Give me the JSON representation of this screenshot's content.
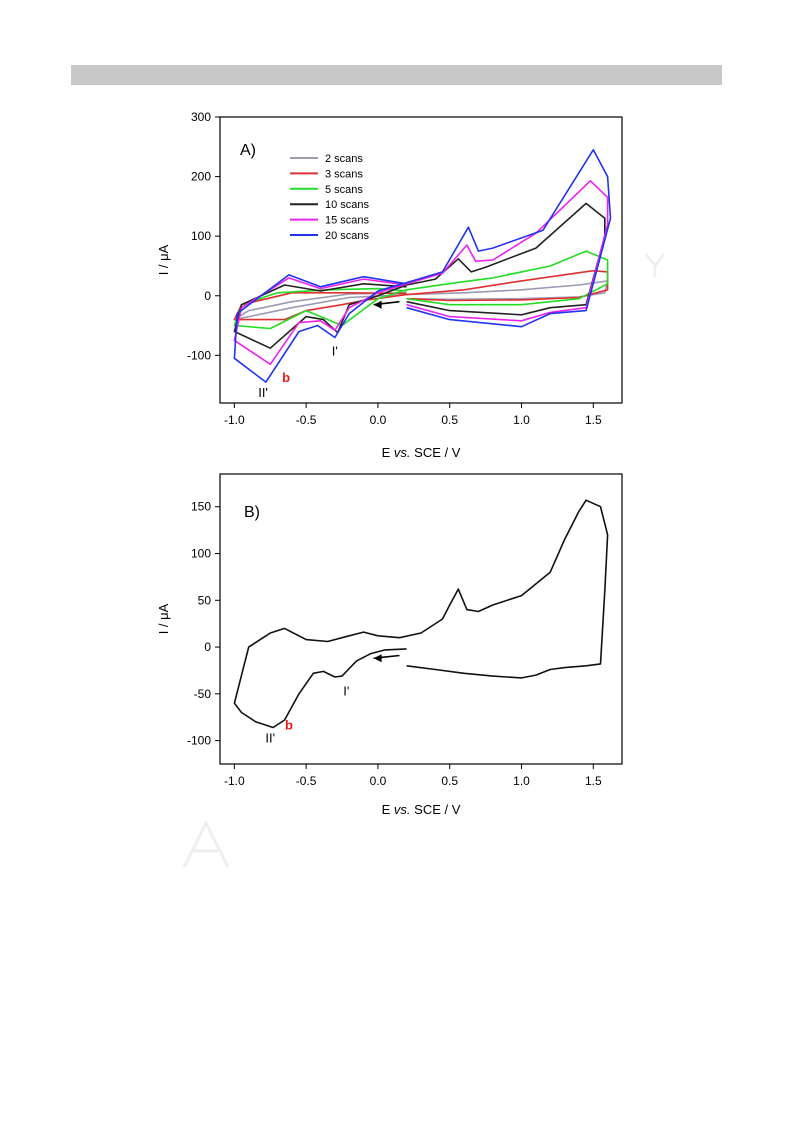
{
  "page": {
    "header_bar_color": "#c8c8c8"
  },
  "chart_data": [
    {
      "type": "line",
      "panel_label": "A)",
      "xlabel_prefix": "E ",
      "xlabel_italic": "vs.",
      "xlabel_suffix": " SCE / V",
      "ylabel": "I / μA",
      "xlim": [
        -1.1,
        1.7
      ],
      "ylim": [
        -180,
        300
      ],
      "xticks": [
        "-1.0",
        "-0.5",
        "0.0",
        "0.5",
        "1.0",
        "1.5"
      ],
      "xtick_values": [
        -1.0,
        -0.5,
        0.0,
        0.5,
        1.0,
        1.5
      ],
      "yticks": [
        "300",
        "200",
        "100",
        "0",
        "-100"
      ],
      "ytick_values": [
        300,
        200,
        100,
        0,
        -100
      ],
      "legend_position": "top-left",
      "series": [
        {
          "name": "2 scans",
          "color": "#9a9ab4",
          "points": [
            [
              0.2,
              -5
            ],
            [
              0.5,
              -6
            ],
            [
              1.0,
              -5
            ],
            [
              1.4,
              -2
            ],
            [
              1.58,
              5
            ],
            [
              1.6,
              25
            ],
            [
              1.4,
              18
            ],
            [
              1.0,
              10
            ],
            [
              0.6,
              5
            ],
            [
              0.2,
              2
            ],
            [
              -0.2,
              -3
            ],
            [
              -0.6,
              -20
            ],
            [
              -1.0,
              -40
            ],
            [
              -0.9,
              -25
            ],
            [
              -0.6,
              -10
            ],
            [
              -0.2,
              3
            ],
            [
              0.2,
              5
            ]
          ]
        },
        {
          "name": "3 scans",
          "color": "#e03030",
          "points": [
            [
              0.2,
              -5
            ],
            [
              0.5,
              -8
            ],
            [
              1.0,
              -7
            ],
            [
              1.4,
              -3
            ],
            [
              1.6,
              10
            ],
            [
              1.6,
              40
            ],
            [
              1.5,
              42
            ],
            [
              1.0,
              25
            ],
            [
              0.6,
              10
            ],
            [
              0.2,
              2
            ],
            [
              -0.1,
              -8
            ],
            [
              -0.25,
              -15
            ],
            [
              -0.5,
              -25
            ],
            [
              -0.65,
              -40
            ],
            [
              -1.0,
              -40
            ],
            [
              -0.95,
              -15
            ],
            [
              -0.6,
              5
            ],
            [
              -0.2,
              5
            ],
            [
              0.2,
              4
            ]
          ]
        },
        {
          "name": "5 scans",
          "color": "#22dd22",
          "points": [
            [
              0.2,
              -5
            ],
            [
              0.5,
              -15
            ],
            [
              1.0,
              -15
            ],
            [
              1.4,
              -5
            ],
            [
              1.6,
              20
            ],
            [
              1.6,
              60
            ],
            [
              1.45,
              75
            ],
            [
              1.2,
              50
            ],
            [
              0.8,
              30
            ],
            [
              0.55,
              22
            ],
            [
              0.2,
              10
            ],
            [
              0.0,
              -5
            ],
            [
              -0.25,
              -50
            ],
            [
              -0.5,
              -25
            ],
            [
              -0.75,
              -55
            ],
            [
              -1.0,
              -50
            ],
            [
              -0.95,
              -15
            ],
            [
              -0.7,
              5
            ],
            [
              -0.35,
              10
            ],
            [
              0.0,
              12
            ],
            [
              0.2,
              8
            ]
          ]
        },
        {
          "name": "10 scans",
          "color": "#222222",
          "points": [
            [
              0.2,
              -10
            ],
            [
              0.5,
              -25
            ],
            [
              1.0,
              -32
            ],
            [
              1.2,
              -20
            ],
            [
              1.45,
              -15
            ],
            [
              1.58,
              100
            ],
            [
              1.58,
              130
            ],
            [
              1.45,
              155
            ],
            [
              1.1,
              80
            ],
            [
              0.75,
              48
            ],
            [
              0.65,
              40
            ],
            [
              0.56,
              62
            ],
            [
              0.4,
              28
            ],
            [
              0.2,
              18
            ],
            [
              0.0,
              0
            ],
            [
              -0.2,
              -15
            ],
            [
              -0.28,
              -62
            ],
            [
              -0.38,
              -40
            ],
            [
              -0.5,
              -35
            ],
            [
              -0.75,
              -88
            ],
            [
              -1.0,
              -60
            ],
            [
              -0.95,
              -15
            ],
            [
              -0.65,
              18
            ],
            [
              -0.4,
              8
            ],
            [
              -0.1,
              20
            ],
            [
              0.2,
              15
            ]
          ]
        },
        {
          "name": "15 scans",
          "color": "#ee22ee",
          "points": [
            [
              0.2,
              -15
            ],
            [
              0.5,
              -35
            ],
            [
              1.0,
              -42
            ],
            [
              1.2,
              -28
            ],
            [
              1.45,
              -20
            ],
            [
              1.6,
              120
            ],
            [
              1.6,
              165
            ],
            [
              1.48,
              193
            ],
            [
              1.1,
              105
            ],
            [
              0.8,
              60
            ],
            [
              0.68,
              58
            ],
            [
              0.62,
              85
            ],
            [
              0.45,
              38
            ],
            [
              0.2,
              20
            ],
            [
              0.0,
              5
            ],
            [
              -0.2,
              -20
            ],
            [
              -0.3,
              -58
            ],
            [
              -0.4,
              -42
            ],
            [
              -0.55,
              -45
            ],
            [
              -0.75,
              -115
            ],
            [
              -1.0,
              -75
            ],
            [
              -0.95,
              -20
            ],
            [
              -0.62,
              30
            ],
            [
              -0.4,
              12
            ],
            [
              -0.1,
              28
            ],
            [
              0.2,
              18
            ]
          ]
        },
        {
          "name": "20 scans",
          "color": "#2233ee",
          "points": [
            [
              0.2,
              -20
            ],
            [
              0.5,
              -40
            ],
            [
              1.0,
              -52
            ],
            [
              1.2,
              -30
            ],
            [
              1.45,
              -25
            ],
            [
              1.62,
              130
            ],
            [
              1.6,
              200
            ],
            [
              1.5,
              245
            ],
            [
              1.15,
              110
            ],
            [
              0.8,
              80
            ],
            [
              0.7,
              75
            ],
            [
              0.63,
              115
            ],
            [
              0.45,
              40
            ],
            [
              0.2,
              22
            ],
            [
              0.0,
              8
            ],
            [
              -0.2,
              -30
            ],
            [
              -0.3,
              -70
            ],
            [
              -0.42,
              -50
            ],
            [
              -0.55,
              -60
            ],
            [
              -0.78,
              -145
            ],
            [
              -1.0,
              -105
            ],
            [
              -0.98,
              -30
            ],
            [
              -0.62,
              35
            ],
            [
              -0.4,
              15
            ],
            [
              -0.1,
              32
            ],
            [
              0.2,
              20
            ]
          ]
        }
      ],
      "annotations": [
        {
          "text": "I'",
          "x": -0.3,
          "y": -100,
          "color": "#000000"
        },
        {
          "text": "II'",
          "x": -0.8,
          "y": -170,
          "color": "#000000"
        },
        {
          "text": "b",
          "x": -0.64,
          "y": -145,
          "color": "#e81a1a"
        }
      ],
      "arrow": {
        "from": [
          0.15,
          -10
        ],
        "to": [
          -0.03,
          -15
        ]
      }
    },
    {
      "type": "line",
      "panel_label": "B)",
      "xlabel_prefix": "E ",
      "xlabel_italic": "vs.",
      "xlabel_suffix": " SCE / V",
      "ylabel": "I / μA",
      "xlim": [
        -1.1,
        1.7
      ],
      "ylim": [
        -125,
        185
      ],
      "xticks": [
        "-1.0",
        "-0.5",
        "0.0",
        "0.5",
        "1.0",
        "1.5"
      ],
      "xtick_values": [
        -1.0,
        -0.5,
        0.0,
        0.5,
        1.0,
        1.5
      ],
      "yticks": [
        "150",
        "100",
        "50",
        "0",
        "-50",
        "-100"
      ],
      "ytick_values": [
        150,
        100,
        50,
        0,
        -50,
        -100
      ],
      "series": [
        {
          "name": "",
          "color": "#111111",
          "points": [
            [
              0.2,
              -20
            ],
            [
              0.4,
              -24
            ],
            [
              0.6,
              -28
            ],
            [
              0.8,
              -31
            ],
            [
              1.0,
              -33
            ],
            [
              1.1,
              -30
            ],
            [
              1.2,
              -24
            ],
            [
              1.3,
              -22
            ],
            [
              1.45,
              -20
            ],
            [
              1.55,
              -18
            ],
            [
              1.58,
              60
            ],
            [
              1.6,
              120
            ],
            [
              1.55,
              150
            ],
            [
              1.45,
              157
            ],
            [
              1.4,
              145
            ],
            [
              1.3,
              115
            ],
            [
              1.2,
              80
            ],
            [
              1.0,
              55
            ],
            [
              0.8,
              45
            ],
            [
              0.7,
              38
            ],
            [
              0.62,
              40
            ],
            [
              0.56,
              62
            ],
            [
              0.5,
              45
            ],
            [
              0.45,
              30
            ],
            [
              0.3,
              15
            ],
            [
              0.15,
              10
            ],
            [
              0.0,
              12
            ],
            [
              -0.1,
              16
            ],
            [
              -0.2,
              12
            ],
            [
              -0.35,
              6
            ],
            [
              -0.5,
              8
            ],
            [
              -0.65,
              20
            ],
            [
              -0.75,
              15
            ],
            [
              -0.9,
              0
            ],
            [
              -1.0,
              -60
            ],
            [
              -0.95,
              -70
            ],
            [
              -0.85,
              -80
            ],
            [
              -0.73,
              -86
            ],
            [
              -0.65,
              -78
            ],
            [
              -0.55,
              -50
            ],
            [
              -0.45,
              -28
            ],
            [
              -0.38,
              -26
            ],
            [
              -0.3,
              -32
            ],
            [
              -0.25,
              -31
            ],
            [
              -0.15,
              -15
            ],
            [
              -0.05,
              -7
            ],
            [
              0.05,
              -3
            ],
            [
              0.2,
              -2
            ]
          ]
        }
      ],
      "annotations": [
        {
          "text": "I'",
          "x": -0.22,
          "y": -52,
          "color": "#000000"
        },
        {
          "text": "II'",
          "x": -0.75,
          "y": -102,
          "color": "#000000"
        },
        {
          "text": "b",
          "x": -0.62,
          "y": -88,
          "color": "#e81a1a"
        }
      ],
      "arrow": {
        "from": [
          0.15,
          -9
        ],
        "to": [
          -0.03,
          -12
        ]
      }
    }
  ]
}
